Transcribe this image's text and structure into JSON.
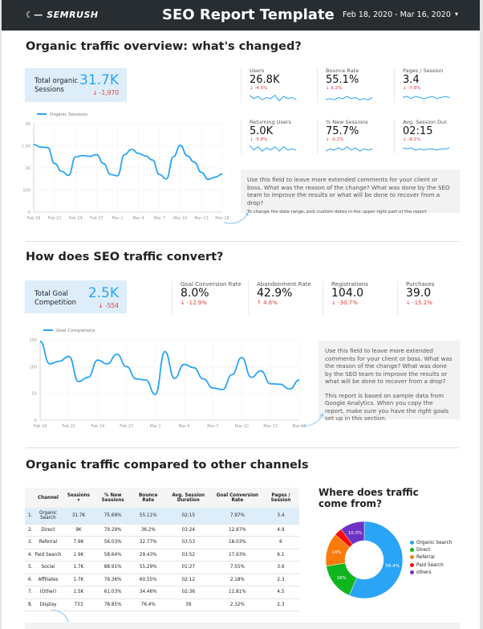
{
  "header": {
    "logo": "SEMRUSH",
    "title": "SEO Report Template",
    "date_range": "Feb 18, 2020 - Mar 16, 2020"
  },
  "colors": {
    "accent": "#2aa4f4",
    "negative": "#e53935",
    "header_bg": "#272d31",
    "kpi_bg": "#ddeefa"
  },
  "s1": {
    "title": "Organic traffic overview: what's changed?",
    "kpi": {
      "label": "Total organic Sessions",
      "value": "31.7K",
      "change": "↓ -1,970"
    },
    "metrics": [
      {
        "name": "Users",
        "value": "26.8K",
        "change": "↓ -4.5%",
        "spark": [
          6,
          3,
          5,
          2,
          4,
          3,
          6,
          1,
          5,
          3,
          4,
          2
        ]
      },
      {
        "name": "Bounce Rate",
        "value": "55.1%",
        "change": "↓ 6.2%",
        "spark": [
          2,
          3,
          2,
          4,
          3,
          5,
          3,
          4,
          2,
          3,
          2,
          4
        ]
      },
      {
        "name": "Pages / Session",
        "value": "3.4",
        "change": "↓ -7.8%",
        "spark": [
          4,
          5,
          3,
          5,
          4,
          3,
          4,
          5,
          3,
          4,
          5,
          4
        ]
      },
      {
        "name": "Returning Users",
        "value": "5.0K",
        "change": "↓ -5.8%",
        "spark": [
          7,
          3,
          6,
          2,
          5,
          3,
          6,
          2,
          6,
          3,
          4,
          3
        ]
      },
      {
        "name": "% New Sessions",
        "value": "75.7%",
        "change": "↓ -0.2%",
        "spark": [
          2,
          4,
          3,
          5,
          3,
          6,
          3,
          5,
          2,
          4,
          3,
          4
        ]
      },
      {
        "name": "Avg. Session Dur.",
        "value": "02:15",
        "change": "↓ -8.1%",
        "spark": [
          5,
          4,
          5,
          3,
          4,
          3,
          4,
          4,
          3,
          4,
          4,
          5
        ]
      }
    ],
    "comment": "Use this field to leave more extended comments for your client or boss. What was the reason of the change? What was done by the SEO team to improve the results or what will be done to recover from a drop?",
    "comment_note": "To change the date range, pick custom dates in the upper right part of the report"
  },
  "s2": {
    "title": "How does SEO traffic convert?",
    "kpi": {
      "label": "Total Goal Competition",
      "value": "2.5K",
      "change": "↓ -554"
    },
    "metrics": [
      {
        "name": "Goal Conversion Rate",
        "value": "8.0%",
        "change": "↓ -12.9%"
      },
      {
        "name": "Abandonment Rate",
        "value": "42.9%",
        "change": "↑ 4.6%"
      },
      {
        "name": "Registrations",
        "value": "104.0",
        "change": "↓ -30.7%"
      },
      {
        "name": "Purchases",
        "value": "39.0",
        "change": "↓ -15.2%"
      }
    ],
    "comment": "Use this field to leave more extended comments for your client or boss. What was the reason of the change? What was done by the SEO team to improve the results or what will be done to recover from a drop?",
    "comment_note": "This report is based on sample data from Google Analytics. When you copy the report, make sure you have the right goals set up in this section."
  },
  "s3": {
    "title": "Organic traffic compared to other channels",
    "table": {
      "headers": [
        "",
        "Channel",
        "Sessions ▾",
        "% New Sessions",
        "Bounce Rate",
        "Avg. Session Duration",
        "Goal Conversion Rate",
        "Pages / Session"
      ],
      "rows": [
        [
          "1.",
          "Organic Search",
          "31.7K",
          "75.69%",
          "55.11%",
          "02:15",
          "7.97%",
          "3.4"
        ],
        [
          "2.",
          "Direct",
          "9K",
          "79.29%",
          "36.2%",
          "03:24",
          "12.97%",
          "4.9"
        ],
        [
          "3.",
          "Referral",
          "7.9K",
          "56.03%",
          "32.77%",
          "03:53",
          "18.03%",
          "6"
        ],
        [
          "4.",
          "Paid Search",
          "1.9K",
          "58.64%",
          "29.43%",
          "03:52",
          "17.93%",
          "6.1"
        ],
        [
          "5.",
          "Social",
          "1.7K",
          "88.91%",
          "55.29%",
          "01:27",
          "7.55%",
          "3.6"
        ],
        [
          "6.",
          "Affiliates",
          "1.7K",
          "79.36%",
          "60.55%",
          "02:12",
          "2.18%",
          "2.3"
        ],
        [
          "7.",
          "(Other)",
          "1.5K",
          "61.03%",
          "34.46%",
          "02:36",
          "11.81%",
          "4.5"
        ],
        [
          "8.",
          "Display",
          "733",
          "78.85%",
          "76.4%",
          "39",
          "2.32%",
          "2.3"
        ]
      ]
    },
    "pie_title": "Where does traffic come from?"
  },
  "chart_data": [
    {
      "type": "line",
      "legend": "Organic Sessions",
      "ylim": [
        0,
        2000
      ],
      "yticks": [
        "0",
        "500",
        "1K",
        "1.5K",
        "2K"
      ],
      "xticks": [
        "Feb 18",
        "Feb 21",
        "Feb 24",
        "Feb 27",
        "Mar 1",
        "Mar 4",
        "Mar 7",
        "Mar 10",
        "Mar 13",
        "Mar 16"
      ],
      "color": "#2aa4f4",
      "grid": true,
      "values": [
        1530,
        1470,
        1460,
        1100,
        920,
        830,
        1250,
        1280,
        1260,
        1300,
        1100,
        850,
        820,
        1300,
        1420,
        1330,
        1270,
        1180,
        850,
        750,
        1250,
        1510,
        1270,
        1130,
        900,
        740,
        790,
        860
      ]
    },
    {
      "type": "line",
      "legend": "Goal Completions",
      "ylim": [
        0,
        150
      ],
      "yticks": [
        "0",
        "50",
        "100",
        "150"
      ],
      "xticks": [
        "Feb 18",
        "Feb 21",
        "Feb 24",
        "Feb 27",
        "Mar 1",
        "Mar 4",
        "Mar 7",
        "Mar 10",
        "Mar 13",
        "Mar 16"
      ],
      "color": "#2aa4f4",
      "grid": true,
      "values": [
        147,
        105,
        110,
        119,
        72,
        80,
        112,
        105,
        123,
        100,
        77,
        75,
        48,
        128,
        78,
        104,
        98,
        77,
        60,
        57,
        85,
        117,
        80,
        92,
        68,
        67,
        58,
        75
      ]
    },
    {
      "type": "pie",
      "donut": true,
      "legend_position": "right",
      "slices": [
        {
          "name": "Organic Search",
          "value": 56.4,
          "label": "56.4%",
          "color": "#2aa4f4"
        },
        {
          "name": "Direct",
          "value": 16,
          "label": "16%",
          "color": "#0fb51f"
        },
        {
          "name": "Referral",
          "value": 14,
          "label": "14%",
          "color": "#fa7b0a"
        },
        {
          "name": "Paid Search",
          "value": 3.3,
          "label": "",
          "color": "#f80c0c"
        },
        {
          "name": "others",
          "value": 10.3,
          "label": "10.3%",
          "color": "#6c33c6"
        }
      ]
    }
  ]
}
